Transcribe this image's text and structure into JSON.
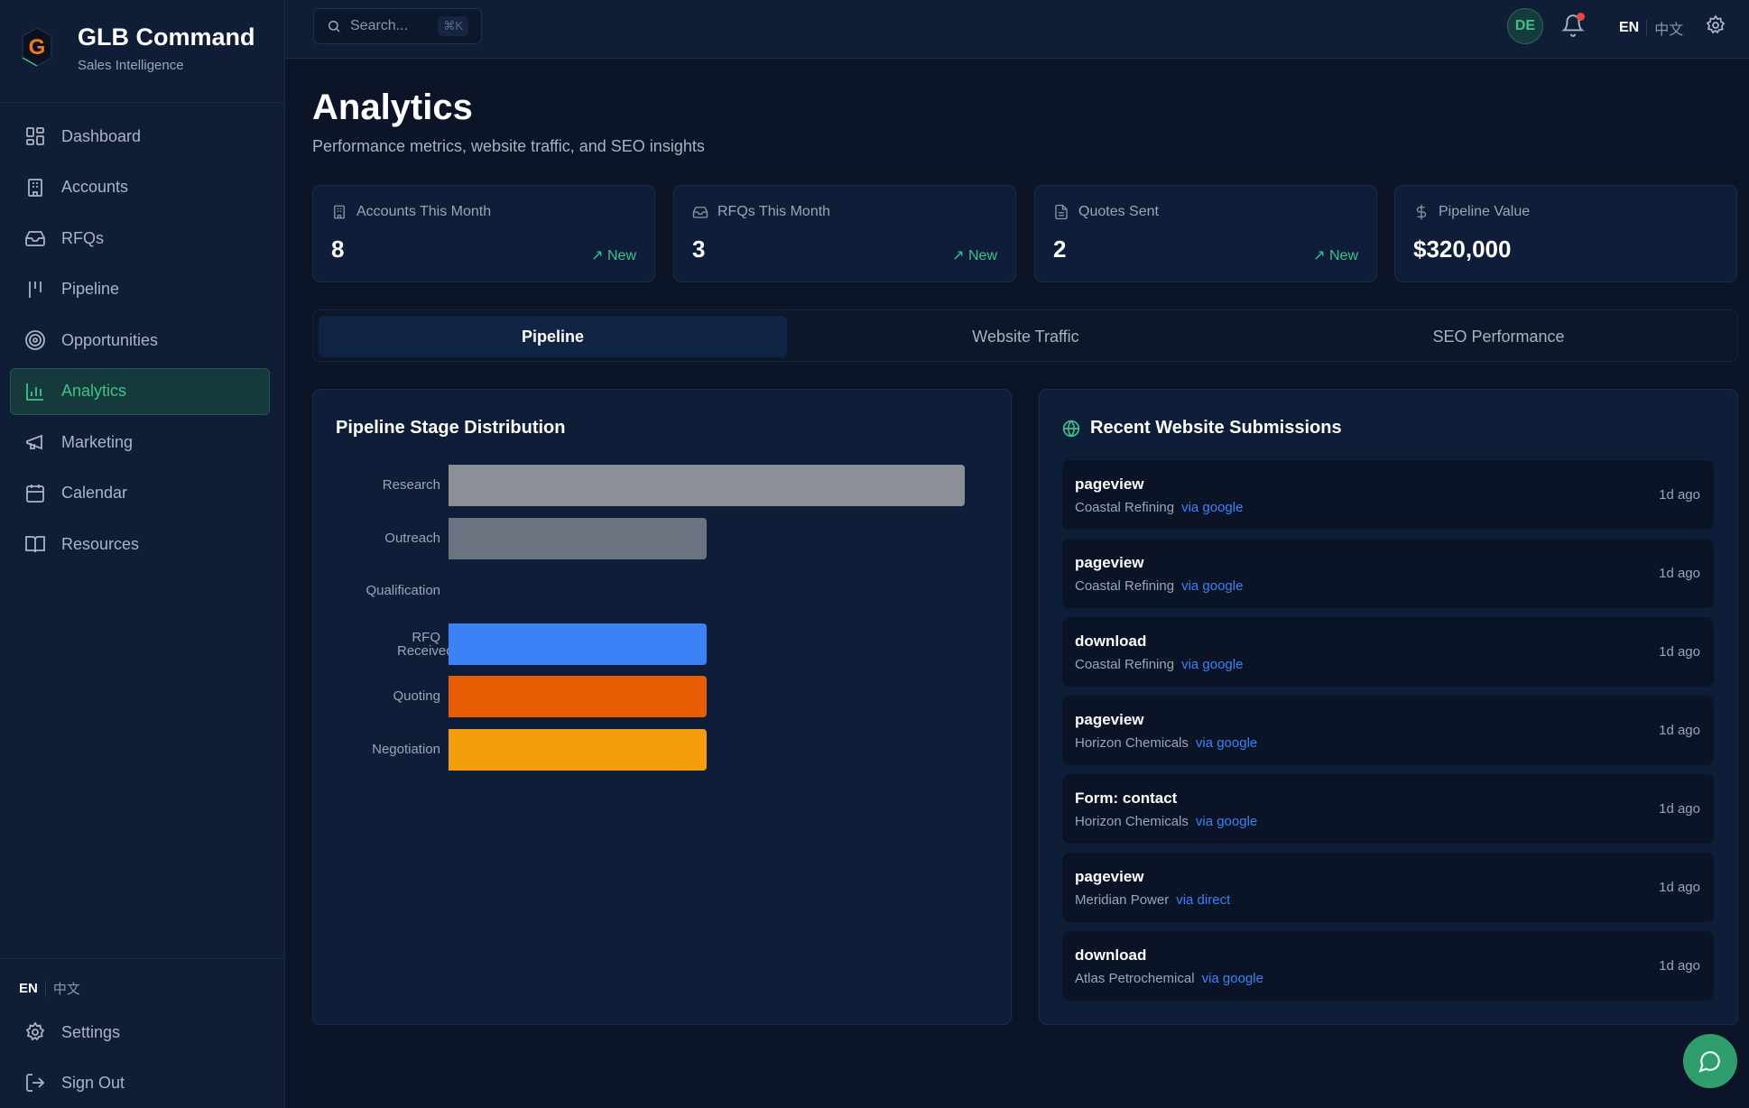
{
  "brand": {
    "title": "GLB Command",
    "subtitle": "Sales Intelligence"
  },
  "sidebar": {
    "items": [
      {
        "label": "Dashboard",
        "icon": "dashboard-icon"
      },
      {
        "label": "Accounts",
        "icon": "building-icon"
      },
      {
        "label": "RFQs",
        "icon": "inbox-icon"
      },
      {
        "label": "Pipeline",
        "icon": "pipeline-icon"
      },
      {
        "label": "Opportunities",
        "icon": "target-icon"
      },
      {
        "label": "Analytics",
        "icon": "bar-chart-icon",
        "active": true
      },
      {
        "label": "Marketing",
        "icon": "megaphone-icon"
      },
      {
        "label": "Calendar",
        "icon": "calendar-icon"
      },
      {
        "label": "Resources",
        "icon": "book-icon"
      }
    ],
    "lang_en": "EN",
    "lang_zh": "中文",
    "settings": "Settings",
    "sign_out": "Sign Out"
  },
  "topbar": {
    "search_placeholder": "Search...",
    "shortcut": "⌘K",
    "avatar": "DE",
    "lang_en": "EN",
    "lang_zh": "中文",
    "notification_dot": true
  },
  "page": {
    "title": "Analytics",
    "subtitle": "Performance metrics, website traffic, and SEO insights"
  },
  "stats": [
    {
      "label": "Accounts This Month",
      "value": "8",
      "trend": "New"
    },
    {
      "label": "RFQs This Month",
      "value": "3",
      "trend": "New"
    },
    {
      "label": "Quotes Sent",
      "value": "2",
      "trend": "New"
    },
    {
      "label": "Pipeline Value",
      "value": "$320,000"
    }
  ],
  "tabs": [
    {
      "label": "Pipeline",
      "active": true
    },
    {
      "label": "Website Traffic"
    },
    {
      "label": "SEO Performance"
    }
  ],
  "chart_data": {
    "type": "bar",
    "orientation": "horizontal",
    "title": "Pipeline Stage Distribution",
    "categories": [
      "Research",
      "Outreach",
      "Qualification",
      "RFQ Received",
      "Quoting",
      "Negotiation"
    ],
    "values": [
      2,
      1,
      0,
      1,
      1,
      1
    ],
    "colors": [
      "#8b8f98",
      "#6b7280",
      "#6b7280",
      "#3b82f6",
      "#e85d04",
      "#f59e0b"
    ],
    "grid": false,
    "legend": "none"
  },
  "submissions": {
    "title": "Recent Website Submissions",
    "items": [
      {
        "type": "pageview",
        "company": "Coastal Refining",
        "source": "via google",
        "time": "1d ago"
      },
      {
        "type": "pageview",
        "company": "Coastal Refining",
        "source": "via google",
        "time": "1d ago"
      },
      {
        "type": "download",
        "company": "Coastal Refining",
        "source": "via google",
        "time": "1d ago"
      },
      {
        "type": "pageview",
        "company": "Horizon Chemicals",
        "source": "via google",
        "time": "1d ago"
      },
      {
        "type": "Form: contact",
        "company": "Horizon Chemicals",
        "source": "via google",
        "time": "1d ago"
      },
      {
        "type": "pageview",
        "company": "Meridian Power",
        "source": "via direct",
        "time": "1d ago"
      },
      {
        "type": "download",
        "company": "Atlas Petrochemical",
        "source": "via google",
        "time": "1d ago"
      }
    ]
  },
  "colors": {
    "accent": "#3ec28a",
    "link": "#3b82f6",
    "background": "#0b1527",
    "sidebar": "#0f1d36"
  }
}
